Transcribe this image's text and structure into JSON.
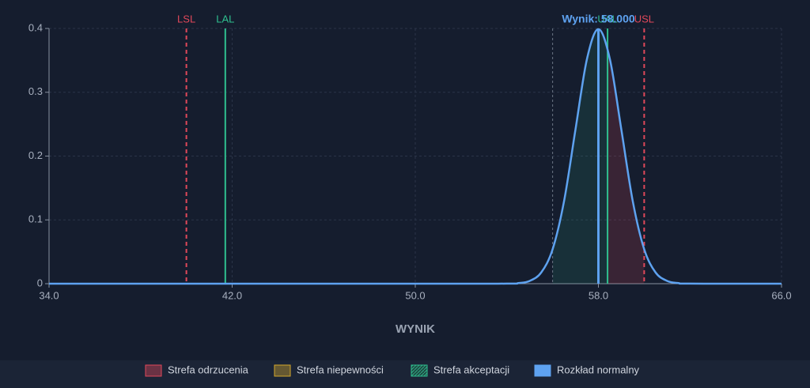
{
  "chart_data": {
    "type": "line",
    "x_label": "WYNIK",
    "x": [
      34,
      50,
      54,
      54.5,
      55,
      55.5,
      56,
      56.5,
      57,
      57.5,
      58,
      58.5,
      59,
      59.5,
      60,
      60.5,
      61,
      61.5,
      62,
      66
    ],
    "series": [
      {
        "name": "Rozkład normalny",
        "color": "#5ea2f0",
        "values": [
          0,
          0,
          0.0001,
          0.0009,
          0.0044,
          0.0175,
          0.054,
          0.1295,
          0.242,
          0.3521,
          0.3989,
          0.3521,
          0.242,
          0.1295,
          0.054,
          0.0175,
          0.0044,
          0.0009,
          0.0001,
          0
        ]
      }
    ],
    "zones": [
      {
        "name": "Strefa odrzucenia",
        "color": "#e0485a"
      },
      {
        "name": "Strefa niepewności",
        "color": "#d4a72c"
      },
      {
        "name": "Strefa akceptacji",
        "color": "#2fbf8f"
      }
    ],
    "limits": [
      {
        "name": "LSL",
        "value": 40,
        "color": "#e0485a"
      },
      {
        "name": "LAL",
        "value": 41.7,
        "color": "#2fbf8f"
      },
      {
        "name": "UAL",
        "value": 58.4,
        "color": "#2fbf8f"
      },
      {
        "name": "USL",
        "value": 60,
        "color": "#e0485a"
      }
    ],
    "reference_line": 56,
    "result": 58,
    "result_label": "Wynik: 58.000",
    "result_color": "#5ea2f0",
    "xlim": [
      34,
      66
    ],
    "xticks": [
      {
        "value": 34,
        "label": "34.0"
      },
      {
        "value": 42,
        "label": "42.0"
      },
      {
        "value": 50,
        "label": "50.0"
      },
      {
        "value": 58,
        "label": "58.0"
      },
      {
        "value": 66,
        "label": "66.0"
      }
    ],
    "ylim": [
      0,
      0.4
    ],
    "yticks": [
      0,
      0.1,
      0.2,
      0.3,
      0.4
    ],
    "grid": true
  }
}
